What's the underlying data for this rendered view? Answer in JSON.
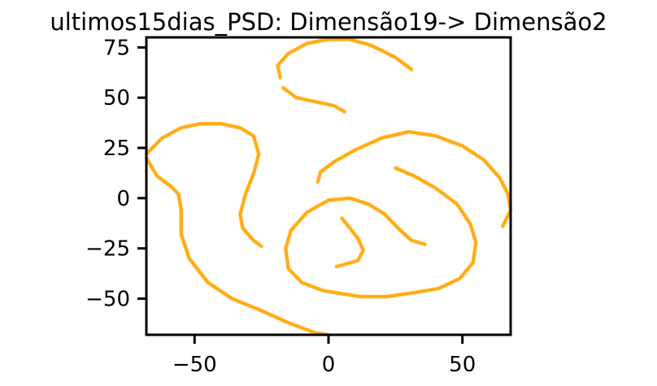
{
  "chart_data": {
    "type": "scatter",
    "title": "ultimos15dias_PSD: Dimensão19-> Dimensão2",
    "xlabel": "",
    "ylabel": "",
    "xlim": [
      -68,
      68
    ],
    "ylim": [
      -68,
      80
    ],
    "xticks": [
      -50,
      0,
      50
    ],
    "xtick_labels": [
      "−50",
      "0",
      "50"
    ],
    "yticks": [
      -50,
      -25,
      0,
      25,
      50,
      75
    ],
    "ytick_labels": [
      "−50",
      "−25",
      "0",
      "25",
      "50",
      "75"
    ],
    "grid": false,
    "marker_color": "#ffa500",
    "series": [
      {
        "points": [
          [
            -68,
            22
          ],
          [
            -62,
            30
          ],
          [
            -55,
            35
          ],
          [
            -48,
            37
          ],
          [
            -40,
            37
          ],
          [
            -33,
            35
          ],
          [
            -28,
            31
          ],
          [
            -26,
            22
          ],
          [
            -28,
            12
          ],
          [
            -31,
            2
          ],
          [
            -33,
            -8
          ],
          [
            -32,
            -15
          ],
          [
            -28,
            -21
          ],
          [
            -25,
            -24
          ],
          [
            -68,
            20
          ],
          [
            -64,
            11
          ],
          [
            -59,
            6
          ],
          [
            -56,
            2
          ],
          [
            -55,
            -6
          ],
          [
            -55,
            -18
          ],
          [
            -52,
            -30
          ],
          [
            -45,
            -42
          ],
          [
            -36,
            -50
          ],
          [
            -25,
            -56
          ],
          [
            -15,
            -62
          ],
          [
            -5,
            -67
          ],
          [
            0,
            -68
          ],
          [
            -18,
            60
          ],
          [
            -19,
            66
          ],
          [
            -15,
            72
          ],
          [
            -8,
            77
          ],
          [
            0,
            79
          ],
          [
            8,
            79
          ],
          [
            16,
            76
          ],
          [
            25,
            70
          ],
          [
            31,
            64
          ],
          [
            -17,
            55
          ],
          [
            -12,
            50
          ],
          [
            -5,
            48
          ],
          [
            2,
            46
          ],
          [
            6,
            43
          ],
          [
            -4,
            8
          ],
          [
            -3,
            13
          ],
          [
            2,
            18
          ],
          [
            10,
            24
          ],
          [
            20,
            30
          ],
          [
            30,
            33
          ],
          [
            40,
            31
          ],
          [
            50,
            26
          ],
          [
            58,
            19
          ],
          [
            64,
            10
          ],
          [
            67,
            2
          ],
          [
            68,
            -6
          ],
          [
            65,
            -14
          ],
          [
            25,
            15
          ],
          [
            32,
            11
          ],
          [
            40,
            5
          ],
          [
            48,
            -3
          ],
          [
            53,
            -13
          ],
          [
            55,
            -22
          ],
          [
            54,
            -32
          ],
          [
            49,
            -40
          ],
          [
            41,
            -45
          ],
          [
            32,
            -47
          ],
          [
            22,
            -49
          ],
          [
            12,
            -49
          ],
          [
            7,
            -48
          ],
          [
            -2,
            -46
          ],
          [
            -10,
            -42
          ],
          [
            -15,
            -35
          ],
          [
            -16,
            -25
          ],
          [
            -14,
            -16
          ],
          [
            -8,
            -7
          ],
          [
            0,
            -1
          ],
          [
            8,
            0
          ],
          [
            15,
            -3
          ],
          [
            21,
            -8
          ],
          [
            26,
            -15
          ],
          [
            31,
            -21
          ],
          [
            36,
            -23
          ],
          [
            5,
            -10
          ],
          [
            8,
            -15
          ],
          [
            11,
            -20
          ],
          [
            13,
            -26
          ],
          [
            11,
            -31
          ],
          [
            6,
            -33
          ],
          [
            3,
            -34
          ]
        ]
      }
    ]
  }
}
